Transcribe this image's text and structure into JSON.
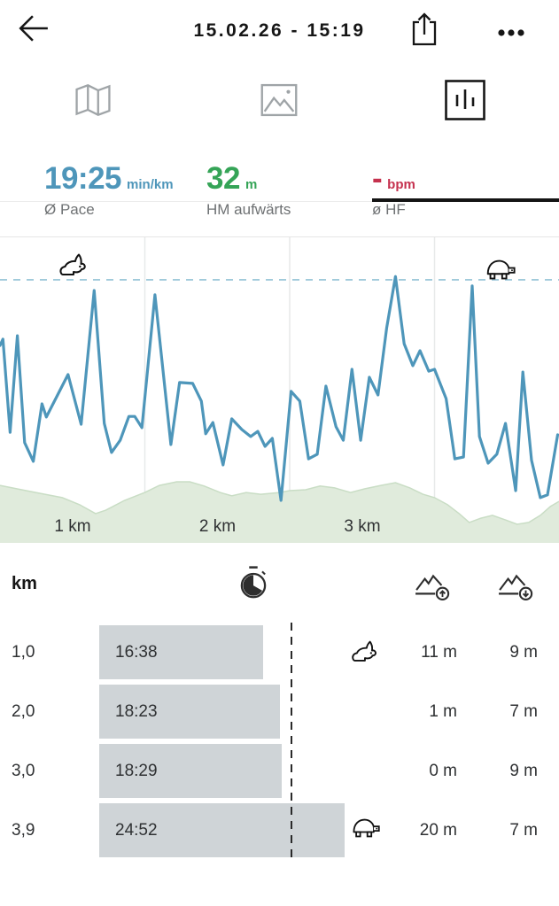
{
  "header": {
    "title": "15.02.26 - 15:19",
    "back_icon": "back-arrow-icon",
    "share_icon": "share-icon",
    "more_icon": "ellipsis-icon"
  },
  "tabs": [
    {
      "id": "map",
      "icon": "map-icon",
      "active": false
    },
    {
      "id": "photos",
      "icon": "photo-icon",
      "active": false
    },
    {
      "id": "chart",
      "icon": "bar-chart-icon",
      "active": true
    }
  ],
  "stats": [
    {
      "value": "19:25",
      "unit": "min/km",
      "label": "Ø Pace",
      "color": "#4E96BA"
    },
    {
      "value": "32",
      "unit": "m",
      "label": "HM aufwärts",
      "color": "#35A457"
    },
    {
      "value": "-",
      "unit": "bpm",
      "label": "ø HF",
      "color": "#C5314E"
    }
  ],
  "chart_data": {
    "type": "line",
    "title": "Pace over distance with elevation profile",
    "x_unit": "km",
    "x_range_km": [
      0,
      3.86
    ],
    "x_axis_labels": [
      {
        "text": "1 km",
        "x_km": 0.5
      },
      {
        "text": "2 km",
        "x_km": 1.5
      },
      {
        "text": "3 km",
        "x_km": 2.5
      }
    ],
    "grid_x_km": [
      1,
      2,
      3
    ],
    "y_axis": "pace (no tick labels shown; y values stored as fraction of chart height from top)",
    "avg_line_y_frac": 0.139,
    "markers": [
      {
        "icon": "rabbit-icon",
        "meaning": "fastest",
        "x_km": 0.51
      },
      {
        "icon": "turtle-icon",
        "meaning": "slowest",
        "x_km": 3.46
      }
    ],
    "series": [
      {
        "name": "pace",
        "color": "#4E96BA",
        "points": [
          [
            0,
            0.354
          ],
          [
            0.02,
            0.333
          ],
          [
            0.07,
            0.638
          ],
          [
            0.12,
            0.322
          ],
          [
            0.17,
            0.672
          ],
          [
            0.23,
            0.733
          ],
          [
            0.29,
            0.545
          ],
          [
            0.32,
            0.588
          ],
          [
            0.47,
            0.449
          ],
          [
            0.56,
            0.612
          ],
          [
            0.65,
            0.174
          ],
          [
            0.72,
            0.609
          ],
          [
            0.77,
            0.704
          ],
          [
            0.83,
            0.664
          ],
          [
            0.89,
            0.586
          ],
          [
            0.93,
            0.586
          ],
          [
            0.98,
            0.623
          ],
          [
            1.07,
            0.188
          ],
          [
            1.18,
            0.678
          ],
          [
            1.24,
            0.475
          ],
          [
            1.33,
            0.478
          ],
          [
            1.39,
            0.536
          ],
          [
            1.42,
            0.643
          ],
          [
            1.47,
            0.606
          ],
          [
            1.54,
            0.745
          ],
          [
            1.6,
            0.594
          ],
          [
            1.67,
            0.629
          ],
          [
            1.73,
            0.652
          ],
          [
            1.78,
            0.635
          ],
          [
            1.83,
            0.684
          ],
          [
            1.88,
            0.658
          ],
          [
            1.94,
            0.861
          ],
          [
            2.01,
            0.504
          ],
          [
            2.07,
            0.536
          ],
          [
            2.13,
            0.725
          ],
          [
            2.19,
            0.71
          ],
          [
            2.25,
            0.487
          ],
          [
            2.32,
            0.62
          ],
          [
            2.37,
            0.664
          ],
          [
            2.43,
            0.432
          ],
          [
            2.49,
            0.664
          ],
          [
            2.55,
            0.458
          ],
          [
            2.61,
            0.516
          ],
          [
            2.67,
            0.296
          ],
          [
            2.73,
            0.128
          ],
          [
            2.79,
            0.348
          ],
          [
            2.85,
            0.42
          ],
          [
            2.9,
            0.371
          ],
          [
            2.96,
            0.438
          ],
          [
            3.0,
            0.432
          ],
          [
            3.08,
            0.528
          ],
          [
            3.14,
            0.725
          ],
          [
            3.2,
            0.719
          ],
          [
            3.26,
            0.159
          ],
          [
            3.31,
            0.652
          ],
          [
            3.37,
            0.739
          ],
          [
            3.43,
            0.71
          ],
          [
            3.49,
            0.609
          ],
          [
            3.56,
            0.829
          ],
          [
            3.61,
            0.441
          ],
          [
            3.67,
            0.73
          ],
          [
            3.73,
            0.852
          ],
          [
            3.78,
            0.843
          ],
          [
            3.85,
            0.646
          ]
        ]
      },
      {
        "name": "elevation",
        "fill": "#E0EBDC",
        "stroke": "#C9DDC5",
        "points": [
          [
            0,
            0.812
          ],
          [
            0.15,
            0.826
          ],
          [
            0.31,
            0.841
          ],
          [
            0.43,
            0.852
          ],
          [
            0.55,
            0.875
          ],
          [
            0.66,
            0.904
          ],
          [
            0.73,
            0.893
          ],
          [
            0.86,
            0.861
          ],
          [
            1.0,
            0.835
          ],
          [
            1.1,
            0.812
          ],
          [
            1.22,
            0.8
          ],
          [
            1.31,
            0.8
          ],
          [
            1.41,
            0.814
          ],
          [
            1.52,
            0.835
          ],
          [
            1.6,
            0.846
          ],
          [
            1.7,
            0.835
          ],
          [
            1.8,
            0.841
          ],
          [
            1.93,
            0.835
          ],
          [
            2.0,
            0.829
          ],
          [
            2.11,
            0.826
          ],
          [
            2.21,
            0.814
          ],
          [
            2.31,
            0.82
          ],
          [
            2.42,
            0.835
          ],
          [
            2.52,
            0.823
          ],
          [
            2.63,
            0.812
          ],
          [
            2.73,
            0.803
          ],
          [
            2.83,
            0.82
          ],
          [
            2.92,
            0.841
          ],
          [
            3.0,
            0.852
          ],
          [
            3.09,
            0.875
          ],
          [
            3.17,
            0.904
          ],
          [
            3.24,
            0.933
          ],
          [
            3.32,
            0.919
          ],
          [
            3.4,
            0.91
          ],
          [
            3.49,
            0.925
          ],
          [
            3.57,
            0.939
          ],
          [
            3.65,
            0.933
          ],
          [
            3.73,
            0.91
          ],
          [
            3.8,
            0.881
          ],
          [
            3.86,
            0.864
          ]
        ]
      }
    ]
  },
  "table": {
    "header": {
      "km_label": "km",
      "icons": [
        "stopwatch-icon",
        "ascent-icon",
        "descent-icon"
      ]
    },
    "rows": [
      {
        "km": "1,0",
        "pace": "16:38",
        "pace_seconds": 998,
        "marker": "rabbit",
        "ascent": "11 m",
        "descent": "9 m"
      },
      {
        "km": "2,0",
        "pace": "18:23",
        "pace_seconds": 1103,
        "marker": null,
        "ascent": "1 m",
        "descent": "7 m"
      },
      {
        "km": "3,0",
        "pace": "18:29",
        "pace_seconds": 1109,
        "marker": null,
        "ascent": "0 m",
        "descent": "9 m"
      },
      {
        "km": "3,9",
        "pace": "24:52",
        "pace_seconds": 1492,
        "marker": "turtle",
        "ascent": "20 m",
        "descent": "7 m"
      }
    ],
    "avg_pace_seconds": 1165
  },
  "palette": {
    "accent_blue": "#4E96BA",
    "stat_green": "#35A457",
    "stat_red": "#C5314E",
    "elevation_fill": "#E0EBDC",
    "elevation_stroke": "#C9DDC5",
    "avg_dash_blue": "#93C2D6",
    "gridline": "#E7E9E9",
    "bar_gray": "#CFD4D7",
    "text_dark": "#2A2C2E",
    "text_gray": "#6E7173",
    "icon_gray": "#9FA4A7"
  }
}
